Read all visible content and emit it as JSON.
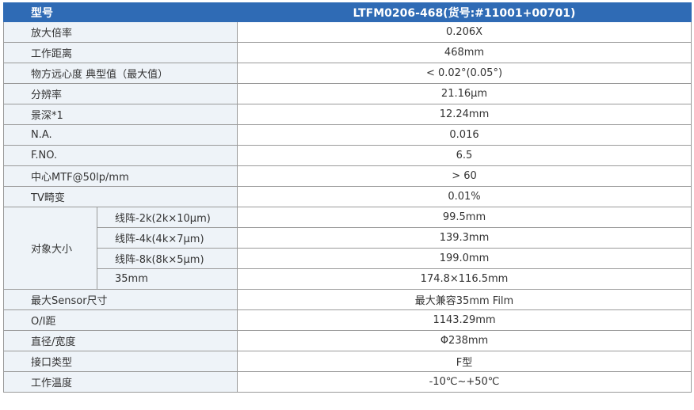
{
  "header": {
    "model_label": "型号",
    "model_value": "LTFM0206-468(货号:#11001+00701)"
  },
  "rows": [
    {
      "label": "放大倍率",
      "value": "0.206X"
    },
    {
      "label": "工作距离",
      "value": "468mm"
    },
    {
      "label": "物方远心度 典型值（最大值）",
      "value": "< 0.02°(0.05°)"
    },
    {
      "label": "分辨率",
      "value": "21.16μm"
    },
    {
      "label": "景深*1",
      "value": "12.24mm"
    },
    {
      "label": "N.A.",
      "value": "0.016"
    },
    {
      "label": "F.NO.",
      "value": "6.5"
    },
    {
      "label": "中心MTF@50lp/mm",
      "value": "> 60"
    },
    {
      "label": "TV畸变",
      "value": "0.01%"
    }
  ],
  "object_size": {
    "label": "对象大小",
    "items": [
      {
        "label": "线阵-2k(2k×10μm)",
        "value": "99.5mm"
      },
      {
        "label": "线阵-4k(4k×7μm)",
        "value": "139.3mm"
      },
      {
        "label": "线阵-8k(8k×5μm)",
        "value": "199.0mm"
      },
      {
        "label": "35mm",
        "value": "174.8×116.5mm"
      }
    ]
  },
  "rows_after": [
    {
      "label": "最大Sensor尺寸",
      "value": "最大兼容35mm Film"
    },
    {
      "label": "O/I距",
      "value": "1143.29mm"
    },
    {
      "label": "直径/宽度",
      "value": "Φ238mm"
    },
    {
      "label": "接口类型",
      "value": "F型"
    },
    {
      "label": "工作温度",
      "value": "-10℃~+50℃"
    }
  ],
  "colors": {
    "header_bg": "#2f6bb5",
    "label_bg": "#eef3f8",
    "border": "#9a9a9a"
  }
}
